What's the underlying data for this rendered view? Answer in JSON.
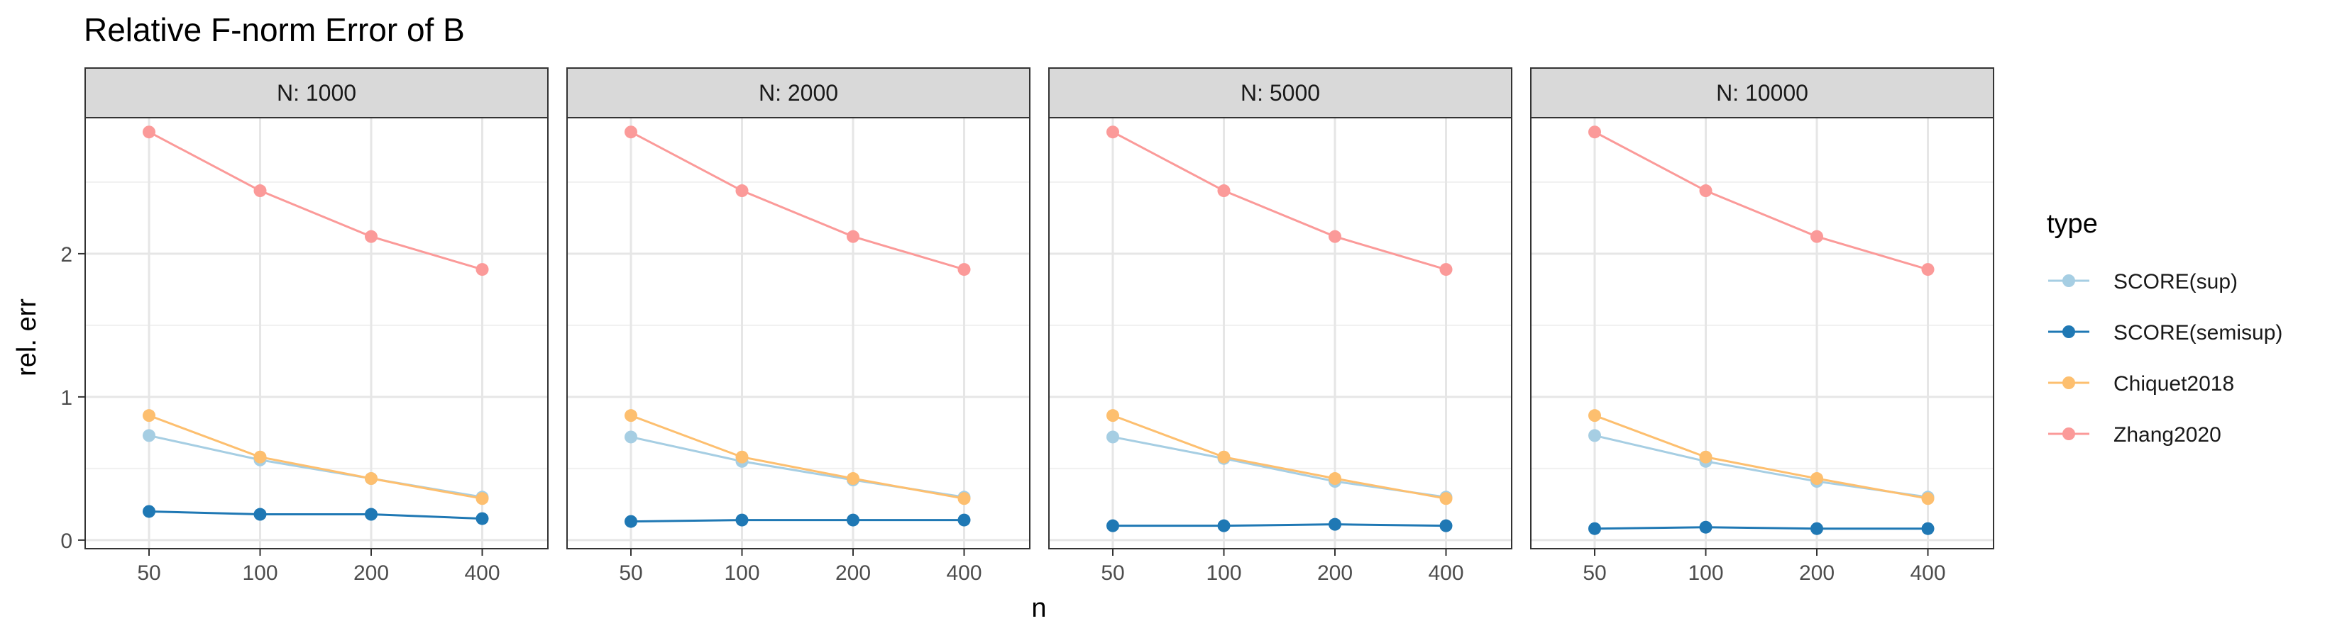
{
  "chart_data": {
    "type": "line",
    "title": "Relative F-norm Error of B",
    "xlabel": "n",
    "ylabel": "rel. err",
    "x": [
      50,
      100,
      200,
      400
    ],
    "x_ticks": [
      "50",
      "100",
      "200",
      "400"
    ],
    "y_ticks": [
      0,
      1,
      2
    ],
    "ylim": [
      -0.06,
      2.95
    ],
    "grid": true,
    "legend": {
      "title": "type",
      "position": "right",
      "entries": [
        "SCORE(sup)",
        "SCORE(semisup)",
        "Chiquet2018",
        "Zhang2020"
      ]
    },
    "facets": [
      {
        "label": "N: 1000",
        "series": [
          {
            "name": "SCORE(sup)",
            "color": "#a6cee3",
            "values": [
              0.73,
              0.56,
              0.43,
              0.3
            ]
          },
          {
            "name": "SCORE(semisup)",
            "color": "#1f78b4",
            "values": [
              0.2,
              0.18,
              0.18,
              0.15
            ]
          },
          {
            "name": "Chiquet2018",
            "color": "#fdbf6f",
            "values": [
              0.87,
              0.58,
              0.43,
              0.29
            ]
          },
          {
            "name": "Zhang2020",
            "color": "#fb9a99",
            "values": [
              2.85,
              2.44,
              2.12,
              1.89
            ]
          }
        ]
      },
      {
        "label": "N: 2000",
        "series": [
          {
            "name": "SCORE(sup)",
            "color": "#a6cee3",
            "values": [
              0.72,
              0.55,
              0.42,
              0.3
            ]
          },
          {
            "name": "SCORE(semisup)",
            "color": "#1f78b4",
            "values": [
              0.13,
              0.14,
              0.14,
              0.14
            ]
          },
          {
            "name": "Chiquet2018",
            "color": "#fdbf6f",
            "values": [
              0.87,
              0.58,
              0.43,
              0.29
            ]
          },
          {
            "name": "Zhang2020",
            "color": "#fb9a99",
            "values": [
              2.85,
              2.44,
              2.12,
              1.89
            ]
          }
        ]
      },
      {
        "label": "N: 5000",
        "series": [
          {
            "name": "SCORE(sup)",
            "color": "#a6cee3",
            "values": [
              0.72,
              0.57,
              0.41,
              0.3
            ]
          },
          {
            "name": "SCORE(semisup)",
            "color": "#1f78b4",
            "values": [
              0.1,
              0.1,
              0.11,
              0.1
            ]
          },
          {
            "name": "Chiquet2018",
            "color": "#fdbf6f",
            "values": [
              0.87,
              0.58,
              0.43,
              0.29
            ]
          },
          {
            "name": "Zhang2020",
            "color": "#fb9a99",
            "values": [
              2.85,
              2.44,
              2.12,
              1.89
            ]
          }
        ]
      },
      {
        "label": "N: 10000",
        "series": [
          {
            "name": "SCORE(sup)",
            "color": "#a6cee3",
            "values": [
              0.73,
              0.55,
              0.41,
              0.3
            ]
          },
          {
            "name": "SCORE(semisup)",
            "color": "#1f78b4",
            "values": [
              0.08,
              0.09,
              0.08,
              0.08
            ]
          },
          {
            "name": "Chiquet2018",
            "color": "#fdbf6f",
            "values": [
              0.87,
              0.58,
              0.43,
              0.29
            ]
          },
          {
            "name": "Zhang2020",
            "color": "#fb9a99",
            "values": [
              2.85,
              2.44,
              2.12,
              1.89
            ]
          }
        ]
      }
    ]
  }
}
